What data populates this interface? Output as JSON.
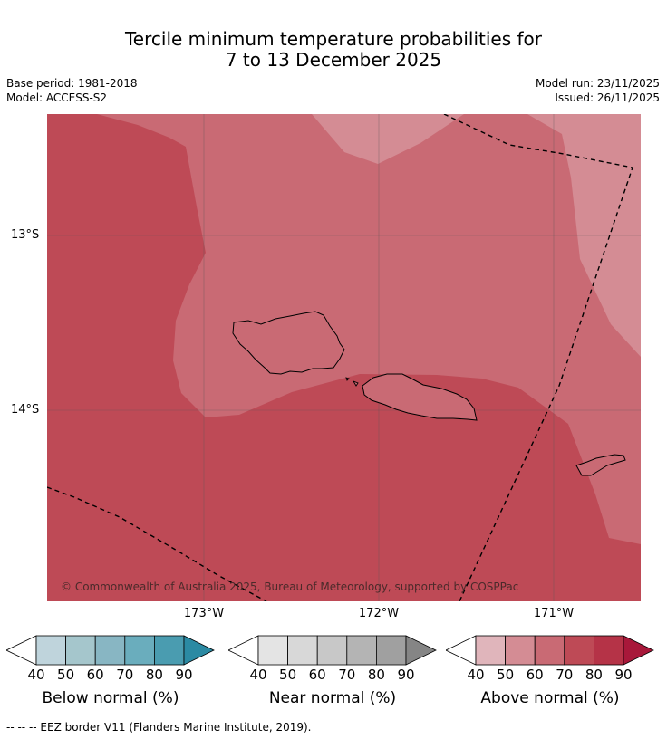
{
  "title": {
    "line1": "Tercile minimum temperature probabilities for",
    "line2": "7 to 13 December 2025"
  },
  "meta": {
    "base_period": "Base period: 1981-2018",
    "model": "Model: ACCESS-S2",
    "model_run": "Model run: 23/11/2025",
    "issued": "Issued: 26/11/2025"
  },
  "map": {
    "lat_labels": [
      "13°S",
      "14°S"
    ],
    "lon_labels": [
      "173°W",
      "172°W",
      "171°W"
    ],
    "copyright": "© Commonwealth of Australia 2025, Bureau of Meteorology, supported by COSPPac",
    "colors": {
      "above_40": "#e0b5bb",
      "above_50": "#d48c94",
      "above_60": "#c96a74",
      "above_70": "#be4a56",
      "land": "#c96a74",
      "coast": "#000000"
    }
  },
  "colorbars": [
    {
      "title": "Below normal (%)",
      "ticks": [
        "40",
        "50",
        "60",
        "70",
        "80",
        "90"
      ],
      "colors": [
        "#bfd4dc",
        "#a5c6cc",
        "#88b6c3",
        "#6aadbd",
        "#4a9cb0",
        "#2b8aa3"
      ]
    },
    {
      "title": "Near normal (%)",
      "ticks": [
        "40",
        "50",
        "60",
        "70",
        "80",
        "90"
      ],
      "colors": [
        "#e4e4e4",
        "#d8d8d8",
        "#c8c8c8",
        "#b4b4b4",
        "#a0a0a0",
        "#858585"
      ]
    },
    {
      "title": "Above normal (%)",
      "ticks": [
        "40",
        "50",
        "60",
        "70",
        "80",
        "90"
      ],
      "colors": [
        "#e0b5bb",
        "#d48c94",
        "#c96a74",
        "#be4a56",
        "#b53347",
        "#a8183a"
      ]
    }
  ],
  "footer": "-- -- -- EEZ border V11 (Flanders Marine Institute, 2019)."
}
